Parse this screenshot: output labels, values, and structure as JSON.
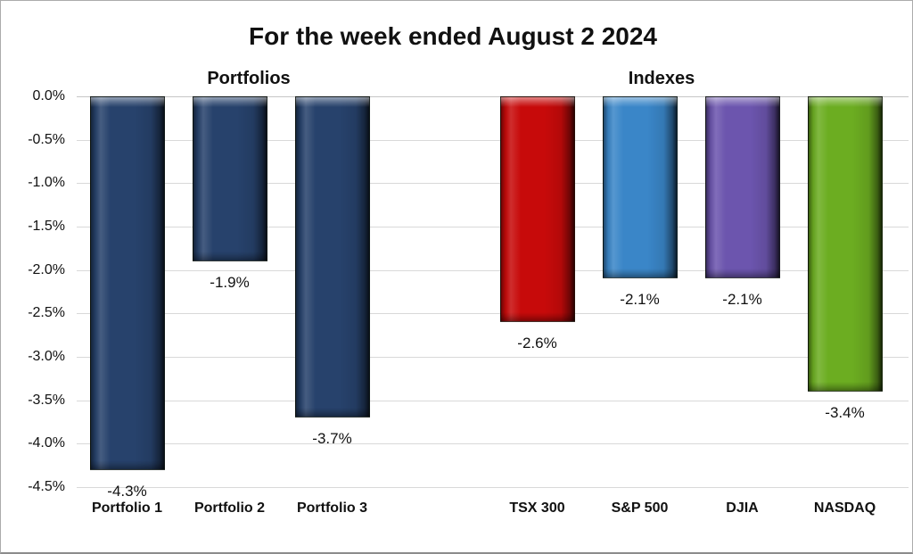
{
  "chart_data": {
    "type": "bar",
    "title": "For the week ended August 2 2024",
    "group_labels": [
      "Portfolios",
      "Indexes"
    ],
    "groups": [
      {
        "label": "Portfolios",
        "categories": [
          "Portfolio 1",
          "Portfolio 2",
          "Portfolio 3"
        ]
      },
      {
        "label": "Indexes",
        "categories": [
          "TSX 300",
          "S&P 500",
          "DJIA",
          "NASDAQ"
        ]
      }
    ],
    "categories": [
      "Portfolio 1",
      "Portfolio 2",
      "Portfolio 3",
      "TSX 300",
      "S&P 500",
      "DJIA",
      "NASDAQ"
    ],
    "values": [
      -4.3,
      -1.9,
      -3.7,
      -2.6,
      -2.1,
      -2.1,
      -3.4
    ],
    "bars": [
      {
        "category": "Portfolio 1",
        "value": -4.3,
        "label": "-4.3%",
        "color": "#27426C",
        "group": "Portfolios",
        "slot": 0
      },
      {
        "category": "Portfolio 2",
        "value": -1.9,
        "label": "-1.9%",
        "color": "#27426C",
        "group": "Portfolios",
        "slot": 1
      },
      {
        "category": "Portfolio 3",
        "value": -3.7,
        "label": "-3.7%",
        "color": "#27426C",
        "group": "Portfolios",
        "slot": 2
      },
      {
        "category": "TSX 300",
        "value": -2.6,
        "label": "-2.6%",
        "color": "#C70A0A",
        "group": "Indexes",
        "slot": 4
      },
      {
        "category": "S&P 500",
        "value": -2.1,
        "label": "-2.1%",
        "color": "#3A86C8",
        "group": "Indexes",
        "slot": 5
      },
      {
        "category": "DJIA",
        "value": -2.1,
        "label": "-2.1%",
        "color": "#6C55AE",
        "group": "Indexes",
        "slot": 6
      },
      {
        "category": "NASDAQ",
        "value": -3.4,
        "label": "-3.4%",
        "color": "#6CAD21",
        "group": "Indexes",
        "slot": 7
      }
    ],
    "y_axis": {
      "ticks": [
        "0.0%",
        "-0.5%",
        "-1.0%",
        "-1.5%",
        "-2.0%",
        "-2.5%",
        "-3.0%",
        "-3.5%",
        "-4.0%",
        "-4.5%"
      ],
      "min": -4.5,
      "max": 0.0,
      "step": 0.5
    },
    "grid": true,
    "gridline_color": "#D9D9D9",
    "background_color": "#FFFFFF"
  }
}
